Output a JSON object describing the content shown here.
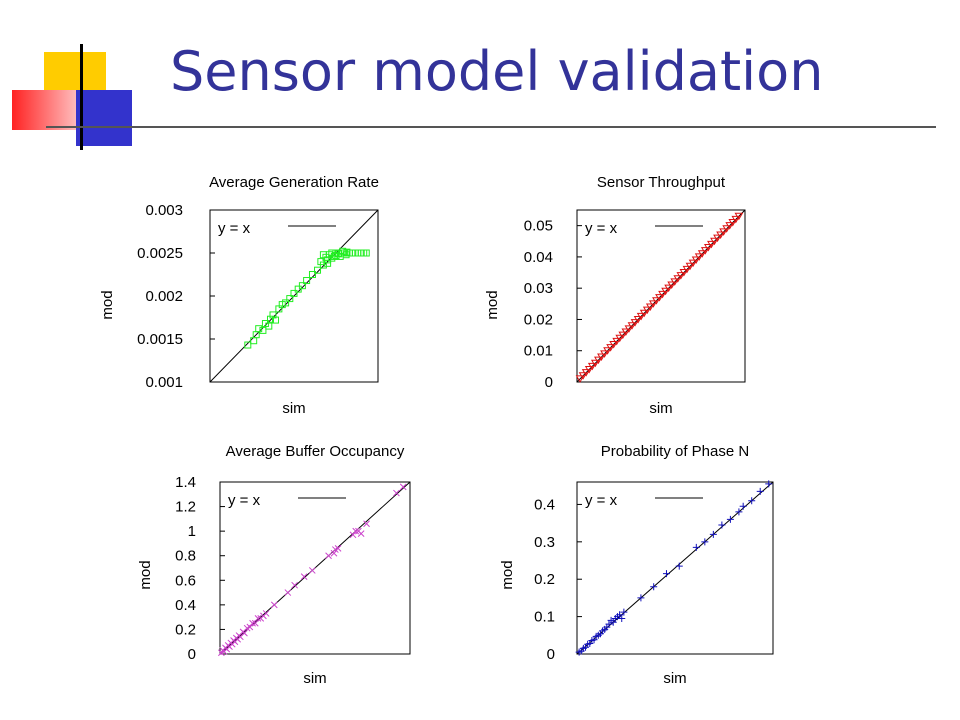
{
  "slide": {
    "title": "Sensor model validation",
    "colors": {
      "title": "#333399",
      "deco_yellow": "#ffcc00",
      "deco_red": "#ff3333",
      "deco_blue": "#3333cc"
    }
  },
  "chart_data": [
    {
      "type": "scatter",
      "title": "Average Generation Rate",
      "xlabel": "sim",
      "ylabel": "mod",
      "ylim": [
        0.001,
        0.003
      ],
      "xlim": [
        0.001,
        0.003
      ],
      "yticks": [
        "0.001",
        "0.0015",
        "0.002",
        "0.0025",
        "0.003"
      ],
      "ytick_values": [
        0.001,
        0.0015,
        0.002,
        0.0025,
        0.003
      ],
      "legend": "y = x",
      "marker": "square",
      "color": "#22ee22",
      "points": [
        [
          0.00145,
          0.00143
        ],
        [
          0.00152,
          0.00148
        ],
        [
          0.00155,
          0.00155
        ],
        [
          0.00158,
          0.00162
        ],
        [
          0.00163,
          0.0016
        ],
        [
          0.00166,
          0.00168
        ],
        [
          0.0017,
          0.00165
        ],
        [
          0.00172,
          0.00173
        ],
        [
          0.00175,
          0.00178
        ],
        [
          0.00178,
          0.00172
        ],
        [
          0.00182,
          0.00185
        ],
        [
          0.00186,
          0.0019
        ],
        [
          0.0019,
          0.00192
        ],
        [
          0.00195,
          0.00197
        ],
        [
          0.002,
          0.00203
        ],
        [
          0.00205,
          0.00208
        ],
        [
          0.0021,
          0.00212
        ],
        [
          0.00215,
          0.00218
        ],
        [
          0.00222,
          0.00225
        ],
        [
          0.00228,
          0.0023
        ],
        [
          0.00232,
          0.0024
        ],
        [
          0.00235,
          0.00236
        ],
        [
          0.00238,
          0.00245
        ],
        [
          0.0024,
          0.00242
        ],
        [
          0.00242,
          0.00248
        ],
        [
          0.00245,
          0.0025
        ],
        [
          0.00248,
          0.00246
        ],
        [
          0.0025,
          0.0025
        ],
        [
          0.00253,
          0.00249
        ],
        [
          0.00256,
          0.0025
        ],
        [
          0.0026,
          0.0025
        ],
        [
          0.00263,
          0.00251
        ],
        [
          0.00266,
          0.0025
        ],
        [
          0.0027,
          0.0025
        ],
        [
          0.00273,
          0.0025
        ],
        [
          0.00276,
          0.0025
        ],
        [
          0.0028,
          0.0025
        ],
        [
          0.00283,
          0.0025
        ],
        [
          0.00286,
          0.0025
        ],
        [
          0.00235,
          0.00248
        ],
        [
          0.0024,
          0.00238
        ],
        [
          0.00245,
          0.00244
        ],
        [
          0.0025,
          0.00247
        ],
        [
          0.00255,
          0.00246
        ],
        [
          0.00258,
          0.00252
        ],
        [
          0.00262,
          0.00248
        ]
      ]
    },
    {
      "type": "scatter",
      "title": "Sensor Throughput",
      "xlabel": "sim",
      "ylabel": "mod",
      "ylim": [
        0,
        0.055
      ],
      "xlim": [
        0,
        0.055
      ],
      "yticks": [
        "0",
        "0.01",
        "0.02",
        "0.03",
        "0.04",
        "0.05"
      ],
      "ytick_values": [
        0,
        0.01,
        0.02,
        0.03,
        0.04,
        0.05
      ],
      "legend": "y = x",
      "marker": "triangle-down",
      "color": "#dd1111",
      "points": [
        [
          0.001,
          0.001
        ],
        [
          0.002,
          0.002
        ],
        [
          0.003,
          0.003
        ],
        [
          0.004,
          0.004
        ],
        [
          0.005,
          0.005
        ],
        [
          0.006,
          0.006
        ],
        [
          0.007,
          0.007
        ],
        [
          0.008,
          0.008
        ],
        [
          0.009,
          0.009
        ],
        [
          0.01,
          0.01
        ],
        [
          0.011,
          0.011
        ],
        [
          0.012,
          0.012
        ],
        [
          0.013,
          0.013
        ],
        [
          0.014,
          0.014
        ],
        [
          0.015,
          0.015
        ],
        [
          0.016,
          0.016
        ],
        [
          0.017,
          0.017
        ],
        [
          0.018,
          0.018
        ],
        [
          0.019,
          0.019
        ],
        [
          0.02,
          0.02
        ],
        [
          0.021,
          0.021
        ],
        [
          0.022,
          0.022
        ],
        [
          0.023,
          0.023
        ],
        [
          0.024,
          0.024
        ],
        [
          0.025,
          0.025
        ],
        [
          0.026,
          0.026
        ],
        [
          0.027,
          0.027
        ],
        [
          0.028,
          0.028
        ],
        [
          0.029,
          0.029
        ],
        [
          0.03,
          0.03
        ],
        [
          0.031,
          0.031
        ],
        [
          0.032,
          0.032
        ],
        [
          0.033,
          0.033
        ],
        [
          0.034,
          0.034
        ],
        [
          0.035,
          0.035
        ],
        [
          0.036,
          0.036
        ],
        [
          0.037,
          0.037
        ],
        [
          0.038,
          0.038
        ],
        [
          0.039,
          0.039
        ],
        [
          0.04,
          0.04
        ],
        [
          0.041,
          0.041
        ],
        [
          0.042,
          0.042
        ],
        [
          0.043,
          0.043
        ],
        [
          0.044,
          0.044
        ],
        [
          0.045,
          0.045
        ],
        [
          0.046,
          0.046
        ],
        [
          0.047,
          0.047
        ],
        [
          0.048,
          0.048
        ],
        [
          0.049,
          0.049
        ],
        [
          0.05,
          0.05
        ],
        [
          0.051,
          0.051
        ],
        [
          0.052,
          0.052
        ],
        [
          0.053,
          0.053
        ]
      ]
    },
    {
      "type": "scatter",
      "title": "Average Buffer Occupancy",
      "xlabel": "sim",
      "ylabel": "mod",
      "ylim": [
        0,
        1.4
      ],
      "xlim": [
        0,
        1.4
      ],
      "yticks": [
        "0",
        "0.2",
        "0.4",
        "0.6",
        "0.8",
        "1",
        "1.2",
        "1.4"
      ],
      "ytick_values": [
        0,
        0.2,
        0.4,
        0.6,
        0.8,
        1.0,
        1.2,
        1.4
      ],
      "legend": "y = x",
      "marker": "x",
      "color": "#cc44cc",
      "points": [
        [
          0.01,
          0.01
        ],
        [
          0.02,
          0.03
        ],
        [
          0.03,
          0.02
        ],
        [
          0.04,
          0.05
        ],
        [
          0.05,
          0.04
        ],
        [
          0.06,
          0.07
        ],
        [
          0.07,
          0.06
        ],
        [
          0.08,
          0.09
        ],
        [
          0.09,
          0.08
        ],
        [
          0.1,
          0.11
        ],
        [
          0.11,
          0.1
        ],
        [
          0.12,
          0.13
        ],
        [
          0.13,
          0.12
        ],
        [
          0.14,
          0.15
        ],
        [
          0.15,
          0.14
        ],
        [
          0.17,
          0.18
        ],
        [
          0.18,
          0.17
        ],
        [
          0.2,
          0.21
        ],
        [
          0.22,
          0.22
        ],
        [
          0.24,
          0.25
        ],
        [
          0.26,
          0.25
        ],
        [
          0.28,
          0.29
        ],
        [
          0.3,
          0.29
        ],
        [
          0.32,
          0.31
        ],
        [
          0.34,
          0.33
        ],
        [
          0.4,
          0.4
        ],
        [
          0.5,
          0.5
        ],
        [
          0.55,
          0.56
        ],
        [
          0.62,
          0.63
        ],
        [
          0.68,
          0.68
        ],
        [
          0.8,
          0.8
        ],
        [
          0.84,
          0.82
        ],
        [
          0.85,
          0.85
        ],
        [
          0.87,
          0.86
        ],
        [
          0.98,
          0.97
        ],
        [
          1.0,
          1.0
        ],
        [
          1.02,
          1.0
        ],
        [
          1.04,
          0.98
        ],
        [
          1.08,
          1.06
        ],
        [
          1.3,
          1.31
        ],
        [
          1.35,
          1.36
        ]
      ]
    },
    {
      "type": "scatter",
      "title": "Probability of Phase N",
      "xlabel": "sim",
      "ylabel": "mod",
      "ylim": [
        0,
        0.46
      ],
      "xlim": [
        0,
        0.46
      ],
      "yticks": [
        "0",
        "0.1",
        "0.2",
        "0.3",
        "0.4"
      ],
      "ytick_values": [
        0,
        0.1,
        0.2,
        0.3,
        0.4
      ],
      "legend": "y = x",
      "marker": "plus",
      "color": "#1111bb",
      "points": [
        [
          0.005,
          0.005
        ],
        [
          0.01,
          0.008
        ],
        [
          0.015,
          0.015
        ],
        [
          0.02,
          0.018
        ],
        [
          0.025,
          0.026
        ],
        [
          0.03,
          0.028
        ],
        [
          0.035,
          0.036
        ],
        [
          0.04,
          0.038
        ],
        [
          0.045,
          0.047
        ],
        [
          0.05,
          0.05
        ],
        [
          0.055,
          0.054
        ],
        [
          0.06,
          0.062
        ],
        [
          0.065,
          0.066
        ],
        [
          0.07,
          0.072
        ],
        [
          0.075,
          0.08
        ],
        [
          0.08,
          0.09
        ],
        [
          0.085,
          0.085
        ],
        [
          0.09,
          0.095
        ],
        [
          0.095,
          0.1
        ],
        [
          0.1,
          0.105
        ],
        [
          0.105,
          0.095
        ],
        [
          0.11,
          0.112
        ],
        [
          0.15,
          0.15
        ],
        [
          0.18,
          0.18
        ],
        [
          0.21,
          0.215
        ],
        [
          0.24,
          0.235
        ],
        [
          0.28,
          0.285
        ],
        [
          0.3,
          0.3
        ],
        [
          0.32,
          0.32
        ],
        [
          0.34,
          0.345
        ],
        [
          0.36,
          0.36
        ],
        [
          0.38,
          0.38
        ],
        [
          0.39,
          0.395
        ],
        [
          0.41,
          0.41
        ],
        [
          0.43,
          0.435
        ],
        [
          0.45,
          0.455
        ]
      ]
    }
  ]
}
